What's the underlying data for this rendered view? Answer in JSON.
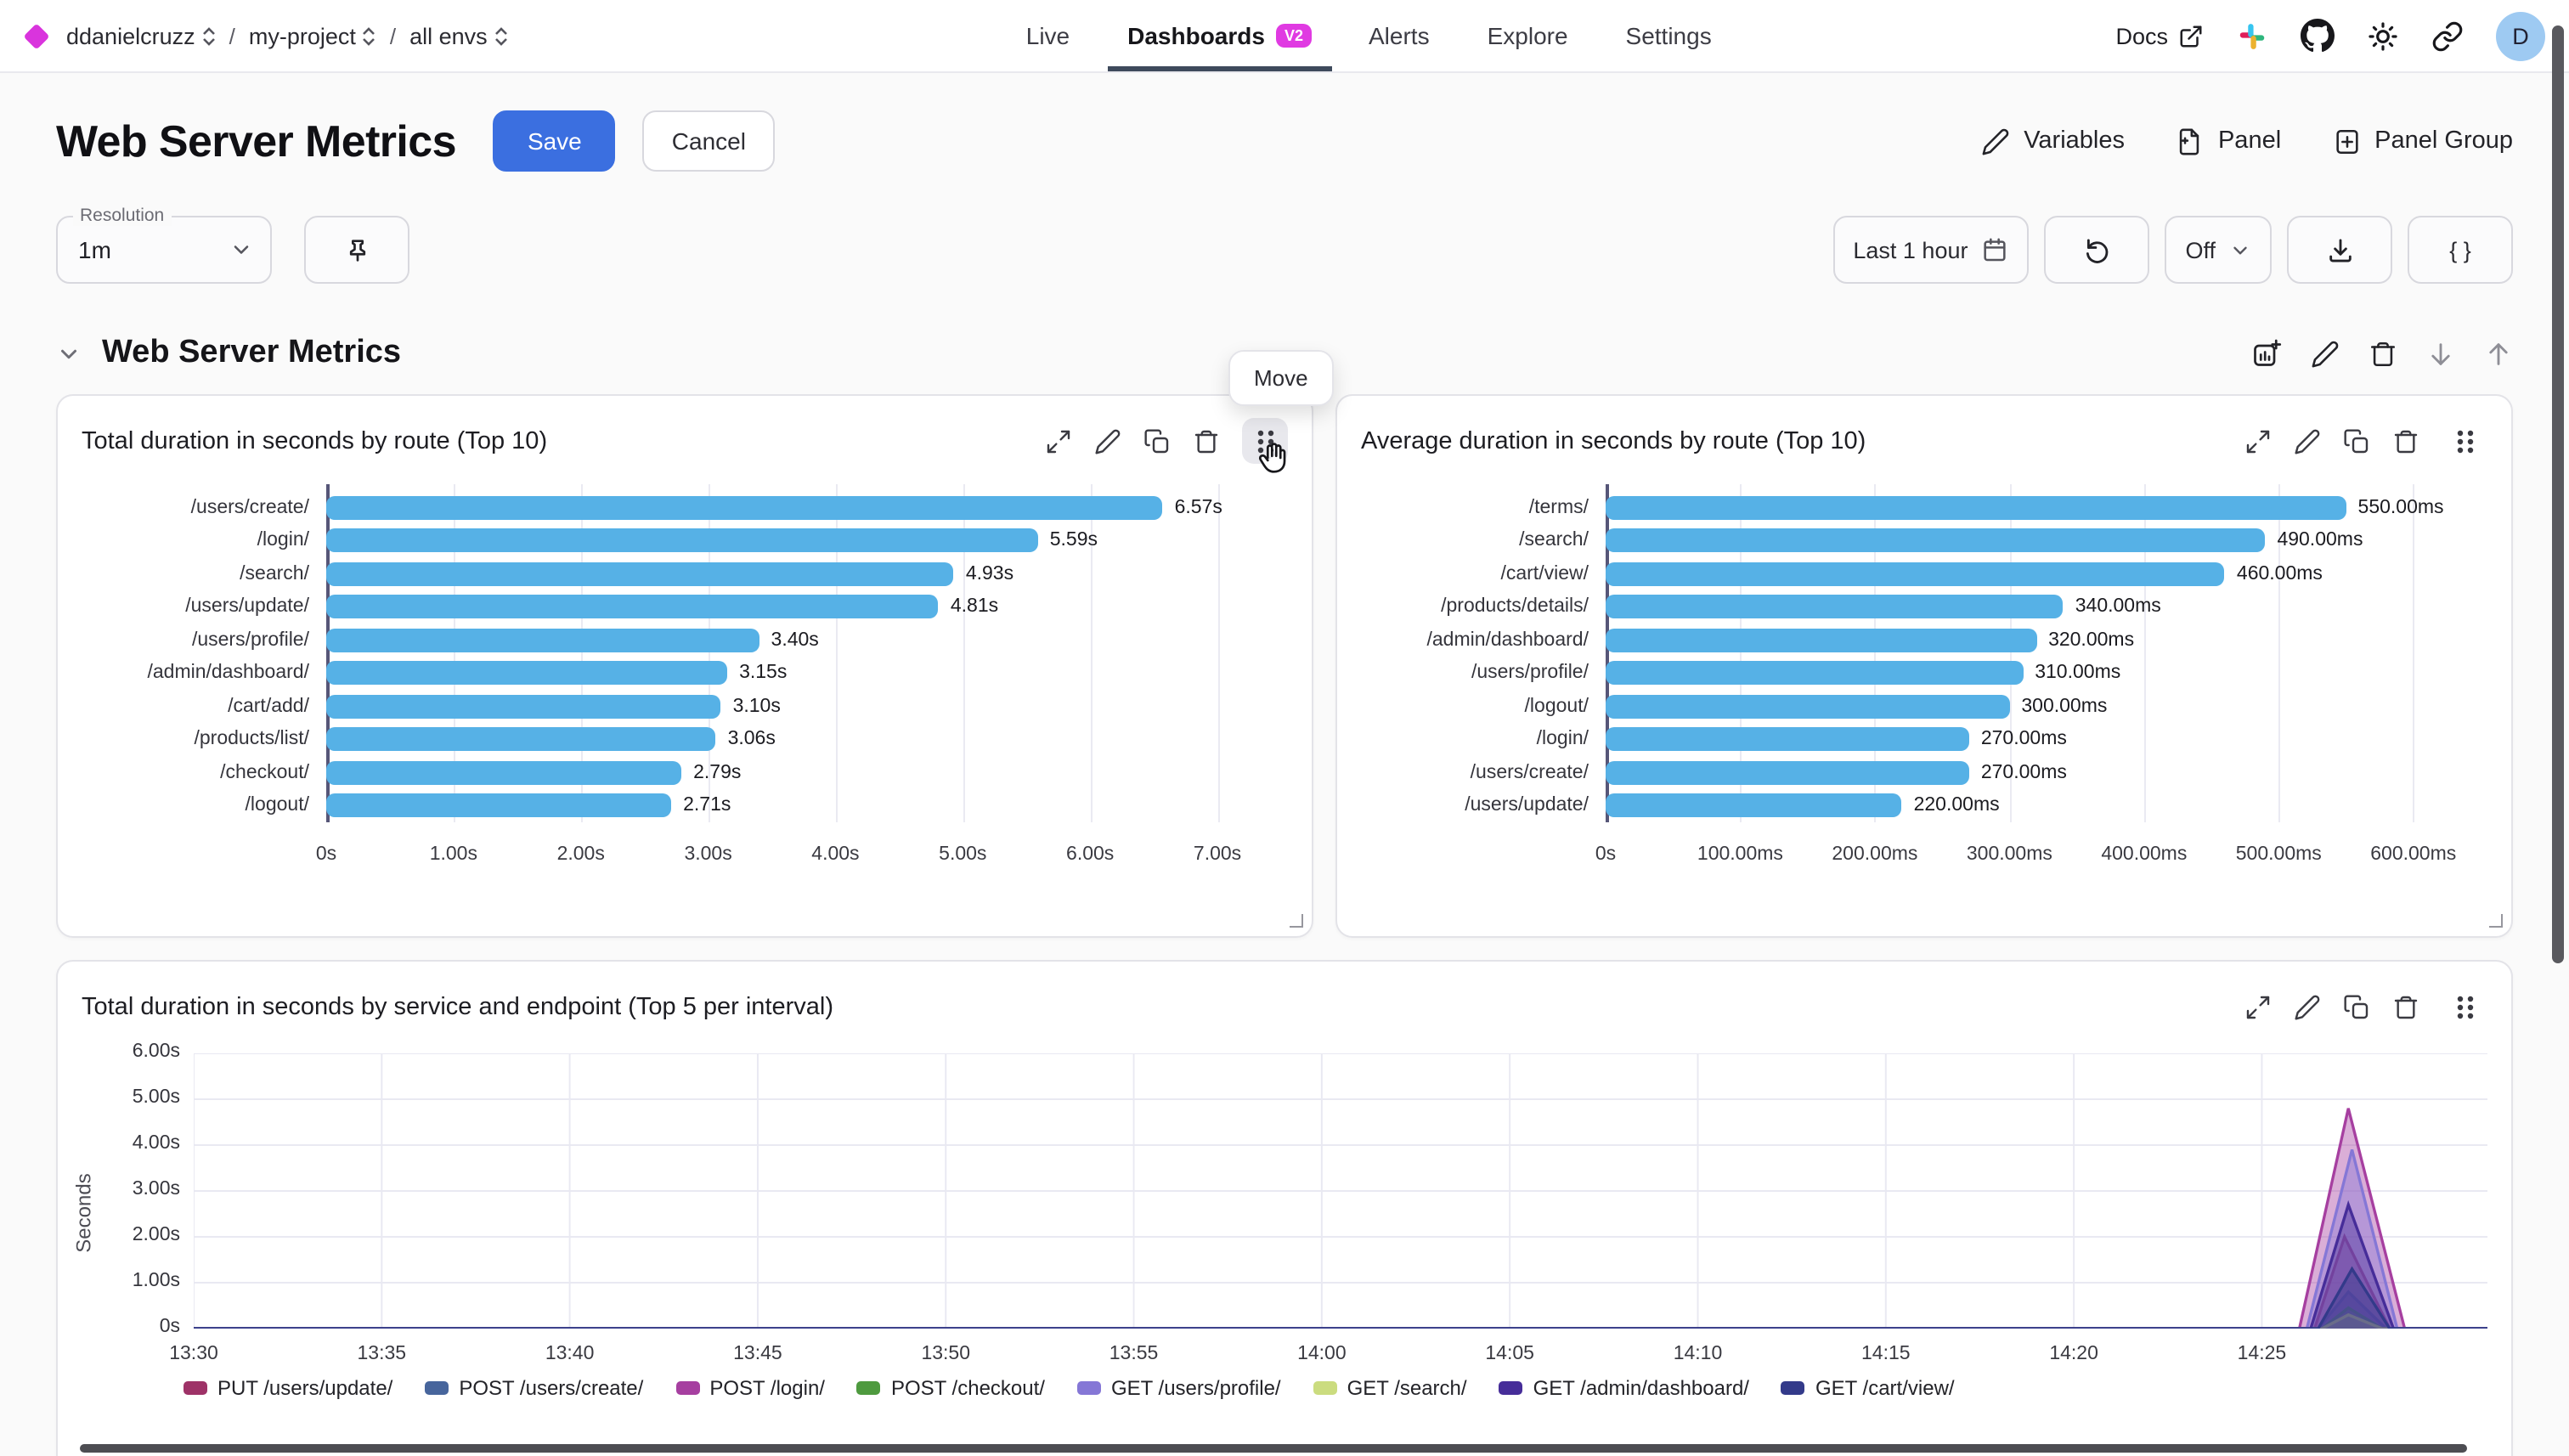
{
  "topbar": {
    "breadcrumb": {
      "org": "ddanielcruzz",
      "separator": "/",
      "project": "my-project",
      "env": "all envs"
    },
    "nav": [
      {
        "label": "Live",
        "active": false
      },
      {
        "label": "Dashboards",
        "active": true,
        "badge": "V2"
      },
      {
        "label": "Alerts",
        "active": false
      },
      {
        "label": "Explore",
        "active": false
      },
      {
        "label": "Settings",
        "active": false
      }
    ],
    "docs_label": "Docs",
    "avatar_initial": "D"
  },
  "header": {
    "title": "Web Server Metrics",
    "save_label": "Save",
    "cancel_label": "Cancel",
    "variables_label": "Variables",
    "panel_label": "Panel",
    "panel_group_label": "Panel Group"
  },
  "controls": {
    "resolution_label": "Resolution",
    "resolution_value": "1m",
    "time_range_label": "Last 1 hour",
    "auto_refresh_label": "Off",
    "braces_label": "{ }"
  },
  "section": {
    "title": "Web Server Metrics",
    "move_tooltip": "Move"
  },
  "icons": {
    "topbar_right": [
      "external-link",
      "slack",
      "github",
      "brightness",
      "link",
      "avatar"
    ],
    "section_toolbar": [
      "add-chart",
      "edit",
      "delete",
      "move-down",
      "move-up"
    ],
    "panel_toolbar": [
      "expand",
      "edit",
      "duplicate",
      "delete",
      "drag-handle"
    ]
  },
  "chart_data": [
    {
      "type": "bar",
      "orientation": "horizontal",
      "title": "Total duration in seconds by route (Top 10)",
      "unit": "s",
      "bar_color": "#56b1e6",
      "categories": [
        "/users/create/",
        "/login/",
        "/search/",
        "/users/update/",
        "/users/profile/",
        "/admin/dashboard/",
        "/cart/add/",
        "/products/list/",
        "/checkout/",
        "/logout/"
      ],
      "values": [
        6.57,
        5.59,
        4.93,
        4.81,
        3.4,
        3.15,
        3.1,
        3.06,
        2.79,
        2.71
      ],
      "value_labels": [
        "6.57s",
        "5.59s",
        "4.93s",
        "4.81s",
        "3.40s",
        "3.15s",
        "3.10s",
        "3.06s",
        "2.79s",
        "2.71s"
      ],
      "xmax": 7.5,
      "xticks": [
        {
          "label": "0s",
          "v": 0
        },
        {
          "label": "1.00s",
          "v": 1
        },
        {
          "label": "2.00s",
          "v": 2
        },
        {
          "label": "3.00s",
          "v": 3
        },
        {
          "label": "4.00s",
          "v": 4
        },
        {
          "label": "5.00s",
          "v": 5
        },
        {
          "label": "6.00s",
          "v": 6
        },
        {
          "label": "7.00s",
          "v": 7
        }
      ]
    },
    {
      "type": "bar",
      "orientation": "horizontal",
      "title": "Average duration in seconds by route (Top 10)",
      "unit": "ms",
      "bar_color": "#56b1e6",
      "categories": [
        "/terms/",
        "/search/",
        "/cart/view/",
        "/products/details/",
        "/admin/dashboard/",
        "/users/profile/",
        "/logout/",
        "/login/",
        "/users/create/",
        "/users/update/"
      ],
      "values": [
        550,
        490,
        460,
        340,
        320,
        310,
        300,
        270,
        270,
        220
      ],
      "value_labels": [
        "550.00ms",
        "490.00ms",
        "460.00ms",
        "340.00ms",
        "320.00ms",
        "310.00ms",
        "300.00ms",
        "270.00ms",
        "270.00ms",
        "220.00ms"
      ],
      "xmax": 650,
      "xticks": [
        {
          "label": "0s",
          "v": 0
        },
        {
          "label": "100.00ms",
          "v": 100
        },
        {
          "label": "200.00ms",
          "v": 200
        },
        {
          "label": "300.00ms",
          "v": 300
        },
        {
          "label": "400.00ms",
          "v": 400
        },
        {
          "label": "500.00ms",
          "v": 500
        },
        {
          "label": "600.00ms",
          "v": 600
        }
      ]
    },
    {
      "type": "area",
      "title": "Total duration in seconds by service and endpoint (Top 5 per interval)",
      "ylabel": "Seconds",
      "ylim": [
        0,
        6.3
      ],
      "yticks": [
        {
          "label": "0s",
          "v": 0
        },
        {
          "label": "1.00s",
          "v": 1
        },
        {
          "label": "2.00s",
          "v": 2
        },
        {
          "label": "3.00s",
          "v": 3
        },
        {
          "label": "4.00s",
          "v": 4
        },
        {
          "label": "5.00s",
          "v": 5
        },
        {
          "label": "6.00s",
          "v": 6
        }
      ],
      "x_start": "13:30",
      "x_end_minutes": 61,
      "xticks": [
        {
          "label": "13:30",
          "m": 0
        },
        {
          "label": "13:35",
          "m": 5
        },
        {
          "label": "13:40",
          "m": 10
        },
        {
          "label": "13:45",
          "m": 15
        },
        {
          "label": "13:50",
          "m": 20
        },
        {
          "label": "13:55",
          "m": 25
        },
        {
          "label": "14:00",
          "m": 30
        },
        {
          "label": "14:05",
          "m": 35
        },
        {
          "label": "14:10",
          "m": 40
        },
        {
          "label": "14:15",
          "m": 45
        },
        {
          "label": "14:20",
          "m": 50
        },
        {
          "label": "14:25",
          "m": 55
        }
      ],
      "series": [
        {
          "name": "PUT /users/update/",
          "color": "#9e3267",
          "points": [
            [
              0,
              0
            ],
            [
              56.4,
              0
            ],
            [
              57.2,
              2.0
            ],
            [
              58.4,
              0
            ],
            [
              61,
              0
            ]
          ]
        },
        {
          "name": "POST /users/create/",
          "color": "#47659c",
          "points": [
            [
              0,
              0
            ],
            [
              56.5,
              0
            ],
            [
              57.3,
              0.8
            ],
            [
              58.3,
              0
            ],
            [
              61,
              0
            ]
          ]
        },
        {
          "name": "POST /login/",
          "color": "#a63fa0",
          "points": [
            [
              0,
              0
            ],
            [
              56.0,
              0
            ],
            [
              57.3,
              4.8
            ],
            [
              58.8,
              0
            ],
            [
              61,
              0
            ]
          ]
        },
        {
          "name": "POST /checkout/",
          "color": "#4e9a3f",
          "points": [
            [
              0,
              0
            ],
            [
              56.6,
              0
            ],
            [
              57.3,
              0.45
            ],
            [
              58.2,
              0
            ],
            [
              61,
              0
            ]
          ]
        },
        {
          "name": "GET /users/profile/",
          "color": "#8577d6",
          "points": [
            [
              0,
              0
            ],
            [
              56.2,
              0
            ],
            [
              57.4,
              3.9
            ],
            [
              58.6,
              0
            ],
            [
              61,
              0
            ]
          ]
        },
        {
          "name": "GET /search/",
          "color": "#cbdc7f",
          "points": [
            [
              0,
              0
            ],
            [
              56.6,
              0
            ],
            [
              57.3,
              0.3
            ],
            [
              58.2,
              0
            ],
            [
              61,
              0
            ]
          ]
        },
        {
          "name": "GET /admin/dashboard/",
          "color": "#462d99",
          "points": [
            [
              0,
              0
            ],
            [
              56.3,
              0
            ],
            [
              57.3,
              2.7
            ],
            [
              58.5,
              0
            ],
            [
              61,
              0
            ]
          ]
        },
        {
          "name": "GET /cart/view/",
          "color": "#333a8a",
          "points": [
            [
              0,
              0
            ],
            [
              56.5,
              0
            ],
            [
              57.4,
              1.3
            ],
            [
              58.4,
              0
            ],
            [
              61,
              0
            ]
          ]
        }
      ]
    }
  ]
}
